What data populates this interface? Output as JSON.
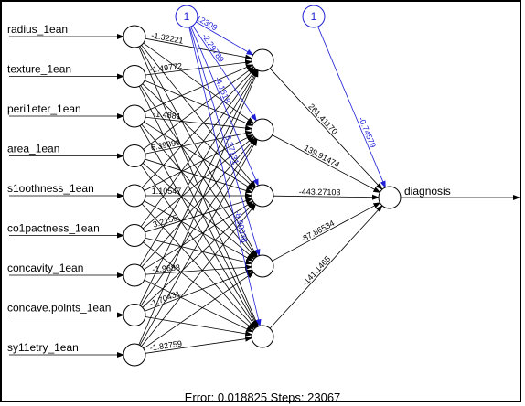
{
  "inputs": [
    "radius_1ean",
    "texture_1ean",
    "peri1eter_1ean",
    "area_1ean",
    "s1oothness_1ean",
    "co1pactness_1ean",
    "concavity_1ean",
    "concave.points_1ean",
    "sy11etry_1ean"
  ],
  "bias_label": "1",
  "output": "diagnosis",
  "hidden_to_output_weights": [
    "261.41170",
    "139.91474",
    "-443.27103",
    "-87.86534",
    "-141.1465"
  ],
  "hidden_bias_weights": [
    "-2.12309",
    "-2.29789",
    "-4.1518",
    "5.27131",
    "-8.90038"
  ],
  "output_bias_weight": "-0.74579",
  "input_weight_labels": [
    "-1.32221",
    "-1.49772",
    "-1.4881",
    "6.39896",
    "1.10547",
    "3.2155",
    "-1.9688",
    "-1.70431",
    "-1.82759"
  ],
  "footer": {
    "error_label": "Error:",
    "error": "0.018825",
    "steps_label": "Steps:",
    "steps": "23067"
  },
  "colors": {
    "bias": "#1f1fd6",
    "edge": "#000000"
  }
}
